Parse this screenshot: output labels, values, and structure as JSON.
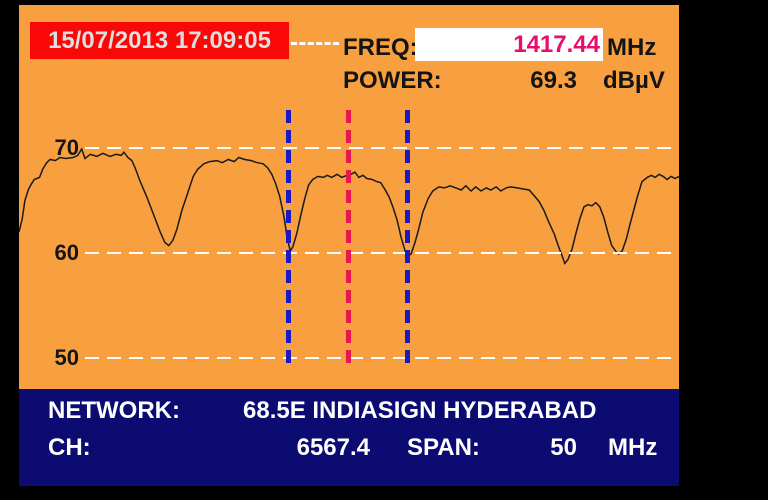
{
  "header": {
    "datetime": "15/07/2013 17:09:05"
  },
  "readout": {
    "freq_label": "FREQ:",
    "freq_value": "1417.44",
    "freq_unit": "MHz",
    "power_label": "POWER:",
    "power_value": "69.3",
    "power_unit": "dBµV"
  },
  "status": {
    "network_label": "NETWORK:",
    "network_value": "68.5E INDIASIGN HYDERABAD",
    "ch_label": "CH:",
    "ch_value": "6567.4",
    "span_label": "SPAN:",
    "span_value": "50",
    "span_unit": "MHz"
  },
  "colors": {
    "background_panel": "#F8A040",
    "status_bar": "#0B0B72",
    "datetime_box": "#FA0707",
    "freq_value_text": "#E80D6E",
    "blue_marker": "#1A1AC2",
    "red_marker": "#E91550",
    "gridline": "#FFFFFF",
    "trace": "#1A1A1A"
  },
  "chart_data": {
    "type": "line",
    "title": "",
    "xlabel": "",
    "ylabel": "dBµV",
    "yticks": [
      70,
      60,
      50
    ],
    "ylim": [
      48,
      74
    ],
    "span_mhz": 50,
    "center_freq_mhz": 1417.44,
    "grid": "dashed-horizontal",
    "markers": [
      {
        "name": "band-left",
        "color": "#1A1AC2",
        "f": 0.408
      },
      {
        "name": "center-frequency",
        "color": "#E91550",
        "f": 0.4985
      },
      {
        "name": "band-right",
        "color": "#1A1AC2",
        "f": 0.588
      }
    ],
    "trace": [
      [
        0.0,
        62.0
      ],
      [
        0.005,
        63.3
      ],
      [
        0.009,
        65.0
      ],
      [
        0.014,
        66.0
      ],
      [
        0.018,
        66.5
      ],
      [
        0.023,
        67.0
      ],
      [
        0.027,
        67.1
      ],
      [
        0.031,
        67.2
      ],
      [
        0.036,
        68.0
      ],
      [
        0.042,
        68.6
      ],
      [
        0.047,
        68.9
      ],
      [
        0.055,
        68.8
      ],
      [
        0.062,
        69.1
      ],
      [
        0.071,
        69.0
      ],
      [
        0.082,
        69.1
      ],
      [
        0.089,
        69.3
      ],
      [
        0.095,
        69.9
      ],
      [
        0.1,
        69.0
      ],
      [
        0.108,
        69.4
      ],
      [
        0.118,
        69.2
      ],
      [
        0.127,
        69.5
      ],
      [
        0.138,
        69.2
      ],
      [
        0.147,
        69.4
      ],
      [
        0.155,
        69.3
      ],
      [
        0.159,
        69.6
      ],
      [
        0.165,
        69.1
      ],
      [
        0.171,
        68.8
      ],
      [
        0.176,
        68.1
      ],
      [
        0.183,
        66.9
      ],
      [
        0.194,
        65.3
      ],
      [
        0.203,
        63.8
      ],
      [
        0.214,
        62.0
      ],
      [
        0.221,
        61.0
      ],
      [
        0.227,
        60.7
      ],
      [
        0.233,
        61.2
      ],
      [
        0.239,
        62.2
      ],
      [
        0.247,
        64.1
      ],
      [
        0.256,
        65.8
      ],
      [
        0.264,
        67.3
      ],
      [
        0.271,
        68.0
      ],
      [
        0.28,
        68.5
      ],
      [
        0.289,
        68.7
      ],
      [
        0.3,
        68.8
      ],
      [
        0.308,
        68.6
      ],
      [
        0.317,
        68.9
      ],
      [
        0.326,
        68.7
      ],
      [
        0.333,
        69.1
      ],
      [
        0.342,
        68.9
      ],
      [
        0.352,
        68.8
      ],
      [
        0.361,
        68.6
      ],
      [
        0.37,
        68.5
      ],
      [
        0.377,
        68.1
      ],
      [
        0.383,
        67.5
      ],
      [
        0.389,
        66.6
      ],
      [
        0.395,
        65.4
      ],
      [
        0.402,
        63.3
      ],
      [
        0.406,
        61.5
      ],
      [
        0.411,
        60.2
      ],
      [
        0.415,
        60.6
      ],
      [
        0.421,
        61.9
      ],
      [
        0.427,
        63.6
      ],
      [
        0.433,
        65.2
      ],
      [
        0.439,
        66.5
      ],
      [
        0.445,
        67.0
      ],
      [
        0.453,
        67.3
      ],
      [
        0.461,
        67.2
      ],
      [
        0.467,
        67.4
      ],
      [
        0.474,
        67.2
      ],
      [
        0.482,
        67.5
      ],
      [
        0.489,
        67.2
      ],
      [
        0.497,
        67.4
      ],
      [
        0.503,
        67.5
      ],
      [
        0.509,
        67.7
      ],
      [
        0.515,
        67.2
      ],
      [
        0.521,
        67.4
      ],
      [
        0.527,
        67.1
      ],
      [
        0.535,
        67.0
      ],
      [
        0.542,
        66.8
      ],
      [
        0.548,
        66.7
      ],
      [
        0.555,
        66.0
      ],
      [
        0.561,
        65.3
      ],
      [
        0.567,
        64.3
      ],
      [
        0.573,
        63.1
      ],
      [
        0.579,
        61.5
      ],
      [
        0.585,
        60.2
      ],
      [
        0.589,
        59.7
      ],
      [
        0.594,
        59.9
      ],
      [
        0.6,
        61.0
      ],
      [
        0.606,
        62.4
      ],
      [
        0.612,
        63.9
      ],
      [
        0.62,
        65.2
      ],
      [
        0.627,
        65.9
      ],
      [
        0.636,
        66.3
      ],
      [
        0.645,
        66.2
      ],
      [
        0.653,
        66.4
      ],
      [
        0.662,
        66.2
      ],
      [
        0.67,
        66.0
      ],
      [
        0.677,
        66.4
      ],
      [
        0.685,
        65.9
      ],
      [
        0.692,
        66.3
      ],
      [
        0.7,
        65.9
      ],
      [
        0.708,
        66.2
      ],
      [
        0.715,
        66.0
      ],
      [
        0.723,
        66.3
      ],
      [
        0.73,
        65.9
      ],
      [
        0.738,
        66.2
      ],
      [
        0.745,
        66.3
      ],
      [
        0.755,
        66.2
      ],
      [
        0.764,
        66.1
      ],
      [
        0.773,
        66.0
      ],
      [
        0.78,
        65.5
      ],
      [
        0.788,
        64.9
      ],
      [
        0.795,
        64.1
      ],
      [
        0.803,
        62.9
      ],
      [
        0.811,
        61.8
      ],
      [
        0.817,
        60.7
      ],
      [
        0.823,
        59.7
      ],
      [
        0.827,
        59.0
      ],
      [
        0.832,
        59.4
      ],
      [
        0.838,
        60.4
      ],
      [
        0.844,
        61.9
      ],
      [
        0.85,
        63.3
      ],
      [
        0.856,
        64.4
      ],
      [
        0.862,
        64.6
      ],
      [
        0.868,
        64.5
      ],
      [
        0.874,
        64.8
      ],
      [
        0.88,
        64.4
      ],
      [
        0.886,
        63.4
      ],
      [
        0.892,
        62.0
      ],
      [
        0.898,
        60.7
      ],
      [
        0.905,
        60.1
      ],
      [
        0.909,
        59.9
      ],
      [
        0.914,
        60.2
      ],
      [
        0.92,
        61.3
      ],
      [
        0.926,
        62.8
      ],
      [
        0.932,
        64.2
      ],
      [
        0.938,
        65.6
      ],
      [
        0.944,
        66.8
      ],
      [
        0.952,
        67.2
      ],
      [
        0.958,
        67.4
      ],
      [
        0.964,
        67.2
      ],
      [
        0.97,
        67.5
      ],
      [
        0.976,
        67.3
      ],
      [
        0.982,
        67.0
      ],
      [
        0.988,
        67.3
      ],
      [
        0.994,
        67.1
      ],
      [
        1.0,
        67.3
      ]
    ]
  }
}
